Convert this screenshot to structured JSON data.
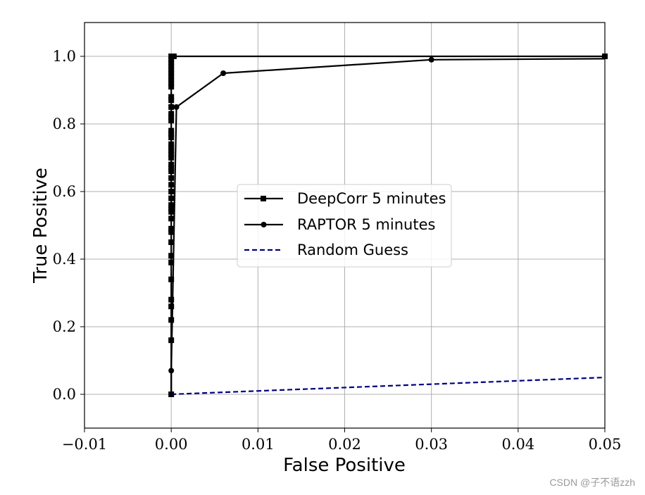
{
  "chart_data": {
    "type": "line",
    "title": "",
    "xlabel": "False Positive",
    "ylabel": "True Positive",
    "xlim": [
      -0.01,
      0.05
    ],
    "ylim": [
      -0.1,
      1.1
    ],
    "grid": true,
    "xticks": [
      -0.01,
      0.0,
      0.01,
      0.02,
      0.03,
      0.04,
      0.05
    ],
    "xtick_labels": [
      "−0.01",
      "0.00",
      "0.01",
      "0.02",
      "0.03",
      "0.04",
      "0.05"
    ],
    "yticks": [
      0.0,
      0.2,
      0.4,
      0.6,
      0.8,
      1.0
    ],
    "ytick_labels": [
      "0.0",
      "0.2",
      "0.4",
      "0.6",
      "0.8",
      "1.0"
    ],
    "legend_position": "center",
    "series": [
      {
        "name": "DeepCorr 5 minutes",
        "color": "#000000",
        "style": "solid",
        "marker": "square",
        "x": [
          0.0,
          0.0,
          0.0,
          0.0,
          0.0,
          0.0,
          0.0,
          0.0,
          0.0,
          0.0,
          0.0,
          0.0,
          0.0,
          0.0,
          0.0,
          0.0,
          0.0,
          0.0,
          0.0,
          0.0,
          0.0,
          0.0,
          0.0,
          0.0,
          0.0,
          0.0,
          0.0,
          0.0,
          0.0,
          0.0,
          0.0,
          0.0,
          0.0,
          0.0,
          0.0,
          0.0,
          0.0,
          0.0,
          0.0,
          0.0,
          0.0,
          0.0,
          0.0,
          0.0,
          0.0,
          0.0,
          0.0003,
          0.05
        ],
        "y": [
          0.0,
          0.16,
          0.22,
          0.26,
          0.28,
          0.34,
          0.39,
          0.41,
          0.45,
          0.48,
          0.49,
          0.52,
          0.54,
          0.55,
          0.56,
          0.58,
          0.6,
          0.62,
          0.64,
          0.66,
          0.67,
          0.68,
          0.7,
          0.71,
          0.72,
          0.73,
          0.74,
          0.76,
          0.77,
          0.78,
          0.81,
          0.82,
          0.83,
          0.85,
          0.87,
          0.88,
          0.91,
          0.92,
          0.93,
          0.94,
          0.95,
          0.96,
          0.97,
          0.98,
          0.99,
          1.0,
          1.0,
          1.0
        ]
      },
      {
        "name": "RAPTOR 5 minutes",
        "color": "#000000",
        "style": "solid",
        "marker": "circle",
        "x": [
          0.0,
          0.0,
          0.0006,
          0.006,
          0.03,
          0.05
        ],
        "y": [
          0.0,
          0.07,
          0.85,
          0.95,
          0.99,
          0.993
        ],
        "marker_last": false
      },
      {
        "name": "Random Guess",
        "color": "#000080",
        "style": "dashed",
        "marker": "none",
        "x": [
          0.0,
          0.05
        ],
        "y": [
          0.0,
          0.05
        ]
      }
    ]
  },
  "watermark": "CSDN @子不语zzh"
}
